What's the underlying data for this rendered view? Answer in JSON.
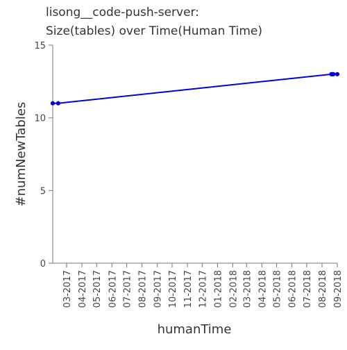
{
  "chart_data": {
    "type": "line",
    "title_lines": [
      "lisong__code-push-server:",
      "Size(tables) over Time(Human Time)"
    ],
    "xlabel": "humanTime",
    "ylabel": "#numNewTables",
    "ylim": [
      0,
      15
    ],
    "yticks": [
      0,
      5,
      10,
      15
    ],
    "xlim": [
      "2017-02-01",
      "2018-09-01"
    ],
    "xticks": [
      "2017-03-01",
      "2017-04-01",
      "2017-05-01",
      "2017-06-01",
      "2017-07-01",
      "2017-08-01",
      "2017-09-01",
      "2017-10-01",
      "2017-11-01",
      "2017-12-01",
      "2018-01-01",
      "2018-02-01",
      "2018-03-01",
      "2018-04-01",
      "2018-05-01",
      "2018-06-01",
      "2018-07-01",
      "2018-08-01",
      "2018-09-01"
    ],
    "xtick_labels": [
      "03-2017",
      "04-2017",
      "05-2017",
      "06-2017",
      "07-2017",
      "08-2017",
      "09-2017",
      "10-2017",
      "11-2017",
      "12-2017",
      "01-2018",
      "02-2018",
      "03-2018",
      "04-2018",
      "05-2018",
      "06-2018",
      "07-2018",
      "08-2018",
      "09-2018"
    ],
    "color": "#0000dd",
    "grid": false,
    "series": [
      {
        "points": [
          {
            "x": "2017-02-01",
            "y": 11
          },
          {
            "x": "2017-02-12",
            "y": 11
          },
          {
            "x": "2018-08-20",
            "y": 13
          },
          {
            "x": "2018-08-22",
            "y": 13
          },
          {
            "x": "2018-08-24",
            "y": 13
          },
          {
            "x": "2018-09-01",
            "y": 13
          }
        ]
      }
    ]
  }
}
